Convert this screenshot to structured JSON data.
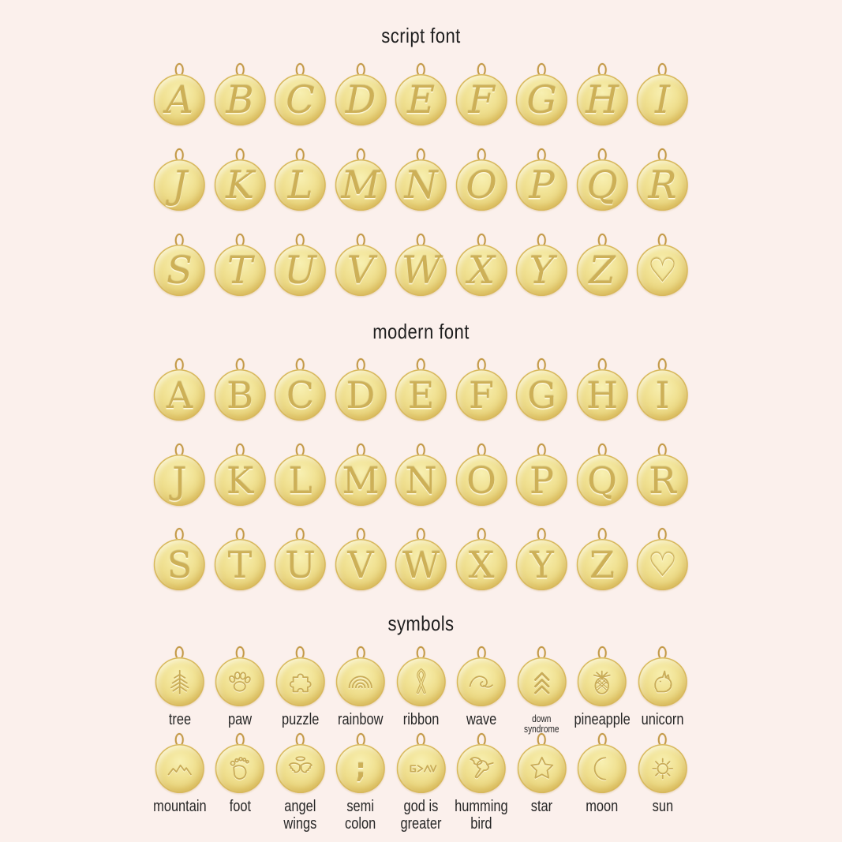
{
  "colors": {
    "background": "#fbf0ec",
    "gold_disc_light": "#f8f0b2",
    "gold_disc_mid": "#ebd883",
    "gold_disc_deep": "#dbbd55",
    "gold_engraving": "#cdb057",
    "gold_ring": "#c49a48",
    "text": "#1e1e1e"
  },
  "sections": [
    {
      "id": "script-font",
      "title": "script font",
      "style": "script",
      "rows": [
        [
          "A",
          "B",
          "C",
          "D",
          "E",
          "F",
          "G",
          "H",
          "I"
        ],
        [
          "J",
          "K",
          "L",
          "M",
          "N",
          "O",
          "P",
          "Q",
          "R"
        ],
        [
          "S",
          "T",
          "U",
          "V",
          "W",
          "X",
          "Y",
          "Z",
          "♡"
        ]
      ]
    },
    {
      "id": "modern-font",
      "title": "modern font",
      "style": "modern",
      "rows": [
        [
          "A",
          "B",
          "C",
          "D",
          "E",
          "F",
          "G",
          "H",
          "I"
        ],
        [
          "J",
          "K",
          "L",
          "M",
          "N",
          "O",
          "P",
          "Q",
          "R"
        ],
        [
          "S",
          "T",
          "U",
          "V",
          "W",
          "X",
          "Y",
          "Z",
          "♡"
        ]
      ]
    },
    {
      "id": "symbols",
      "title": "symbols",
      "style": "symbols",
      "rows": [
        [
          {
            "icon": "tree",
            "label": "tree"
          },
          {
            "icon": "paw",
            "label": "paw"
          },
          {
            "icon": "puzzle",
            "label": "puzzle"
          },
          {
            "icon": "rainbow",
            "label": "rainbow"
          },
          {
            "icon": "ribbon",
            "label": "ribbon"
          },
          {
            "icon": "wave",
            "label": "wave"
          },
          {
            "icon": "down-syndrome",
            "label": "down\nsyndrome",
            "small_label": true
          },
          {
            "icon": "pineapple",
            "label": "pineapple"
          },
          {
            "icon": "unicorn",
            "label": "unicorn"
          }
        ],
        [
          {
            "icon": "mountain",
            "label": "mountain"
          },
          {
            "icon": "foot",
            "label": "foot"
          },
          {
            "icon": "angel-wings",
            "label": "angel\nwings"
          },
          {
            "icon": "semicolon",
            "glyph": ";",
            "label": "semi\ncolon"
          },
          {
            "icon": "god-is-greater",
            "label": "god is\ngreater"
          },
          {
            "icon": "hummingbird",
            "label": "humming\nbird"
          },
          {
            "icon": "star",
            "label": "star"
          },
          {
            "icon": "moon",
            "label": "moon"
          },
          {
            "icon": "sun",
            "label": "sun"
          }
        ]
      ]
    }
  ]
}
